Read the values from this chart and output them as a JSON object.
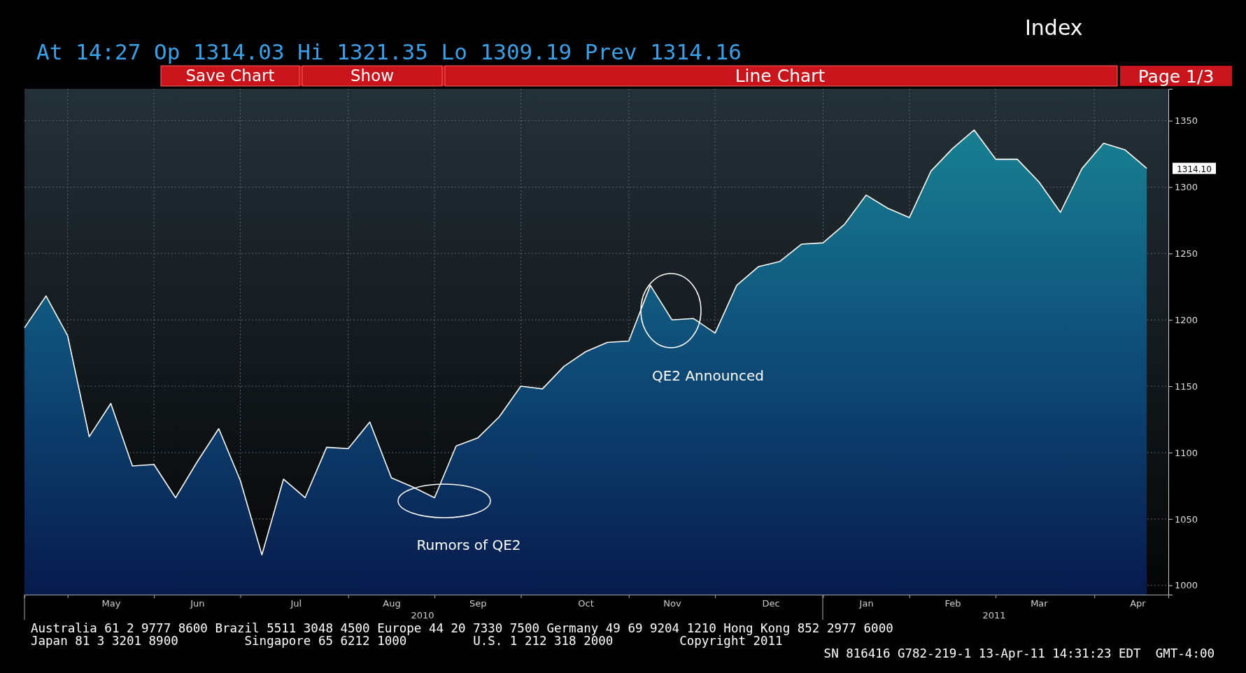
{
  "chart_data": {
    "type": "area",
    "title": "Line Chart",
    "subtitle": "At 14:27 Op 1314.03    Hi 1321.35    Lo 1309.19    Prev 1314.16",
    "annotations": [
      "Index",
      "Save Chart",
      "Show",
      "Page 1/3",
      "2010",
      "2011",
      "Australia 61 2 9777 8600 Brazil 5511 3048 4500 Europe 44 20 7330 7500 Germany 49 69 9204 1210 Hong Kong 852 2977 6000",
      "Japan 81 3 3201 8900         Singapore 65 6212 1000         U.S. 1 212 318 2000         Copyright 2011",
      "SN 816416 G782-219-1 13-Apr-11 14:31:23 EDT  GMT-4:00",
      "QE2 Announced",
      "Rumors of QE2",
      "1314.10"
    ],
    "x": [
      "2010-04-16",
      "2010-04-23",
      "2010-04-30",
      "2010-05-07",
      "2010-05-14",
      "2010-05-21",
      "2010-05-28",
      "2010-06-04",
      "2010-06-11",
      "2010-06-18",
      "2010-06-25",
      "2010-07-02",
      "2010-07-09",
      "2010-07-16",
      "2010-07-23",
      "2010-07-30",
      "2010-08-06",
      "2010-08-13",
      "2010-08-20",
      "2010-08-27",
      "2010-09-03",
      "2010-09-10",
      "2010-09-17",
      "2010-09-24",
      "2010-10-01",
      "2010-10-08",
      "2010-10-15",
      "2010-10-22",
      "2010-10-29",
      "2010-11-05",
      "2010-11-12",
      "2010-11-19",
      "2010-11-26",
      "2010-12-03",
      "2010-12-10",
      "2010-12-17",
      "2010-12-24",
      "2010-12-31",
      "2011-01-07",
      "2011-01-14",
      "2011-01-21",
      "2011-01-28",
      "2011-02-04",
      "2011-02-11",
      "2011-02-18",
      "2011-02-25",
      "2011-03-04",
      "2011-03-11",
      "2011-03-18",
      "2011-03-25",
      "2011-04-01",
      "2011-04-08",
      "2011-04-15"
    ],
    "series": [
      {
        "color": "#ffffff",
        "values": [
          1194,
          1218,
          1188,
          1112,
          1137,
          1090,
          1091,
          1066,
          1093,
          1118,
          1079,
          1023,
          1080,
          1066,
          1104,
          1103,
          1123,
          1081,
          1074,
          1066,
          1105,
          1111,
          1127,
          1150,
          1148,
          1165,
          1176,
          1183,
          1184,
          1226,
          1200,
          1201,
          1190,
          1226,
          1240,
          1244,
          1257,
          1258,
          1272,
          1294,
          1284,
          1277,
          1312,
          1329,
          1343,
          1321,
          1321,
          1304,
          1281,
          1314,
          1333,
          1328,
          1314.1
        ]
      }
    ],
    "xlim": [
      "2010-04-16",
      "2011-04-22"
    ],
    "xticks": [
      {
        "value": "2010-04-30",
        "label": null
      },
      {
        "value": "2010-05-14",
        "label": "May"
      },
      {
        "value": "2010-05-28",
        "label": null
      },
      {
        "value": "2010-06-11",
        "label": "Jun"
      },
      {
        "value": "2010-06-25",
        "label": null
      },
      {
        "value": "2010-07-13",
        "label": "Jul"
      },
      {
        "value": "2010-07-30",
        "label": null
      },
      {
        "value": "2010-08-13",
        "label": "Aug"
      },
      {
        "value": "2010-08-27",
        "label": null
      },
      {
        "value": "2010-09-10",
        "label": "Sep"
      },
      {
        "value": "2010-09-24",
        "label": null
      },
      {
        "value": "2010-10-15",
        "label": "Oct"
      },
      {
        "value": "2010-10-29",
        "label": null
      },
      {
        "value": "2010-11-12",
        "label": "Nov"
      },
      {
        "value": "2010-11-26",
        "label": null
      },
      {
        "value": "2010-12-14",
        "label": "Dec"
      },
      {
        "value": "2010-12-31",
        "label": null
      },
      {
        "value": "2011-01-14",
        "label": "Jan"
      },
      {
        "value": "2011-01-28",
        "label": null
      },
      {
        "value": "2011-02-11",
        "label": "Feb"
      },
      {
        "value": "2011-02-25",
        "label": null
      },
      {
        "value": "2011-03-11",
        "label": "Mar"
      },
      {
        "value": "2011-03-29",
        "label": null
      },
      {
        "value": "2011-04-12",
        "label": "Apr"
      }
    ],
    "ylim": [
      993,
      1374
    ],
    "yticks": [
      1000,
      1050,
      1100,
      1150,
      1200,
      1250,
      1300,
      1350
    ],
    "grid": true,
    "marker": "none",
    "line_style": "solid"
  }
}
